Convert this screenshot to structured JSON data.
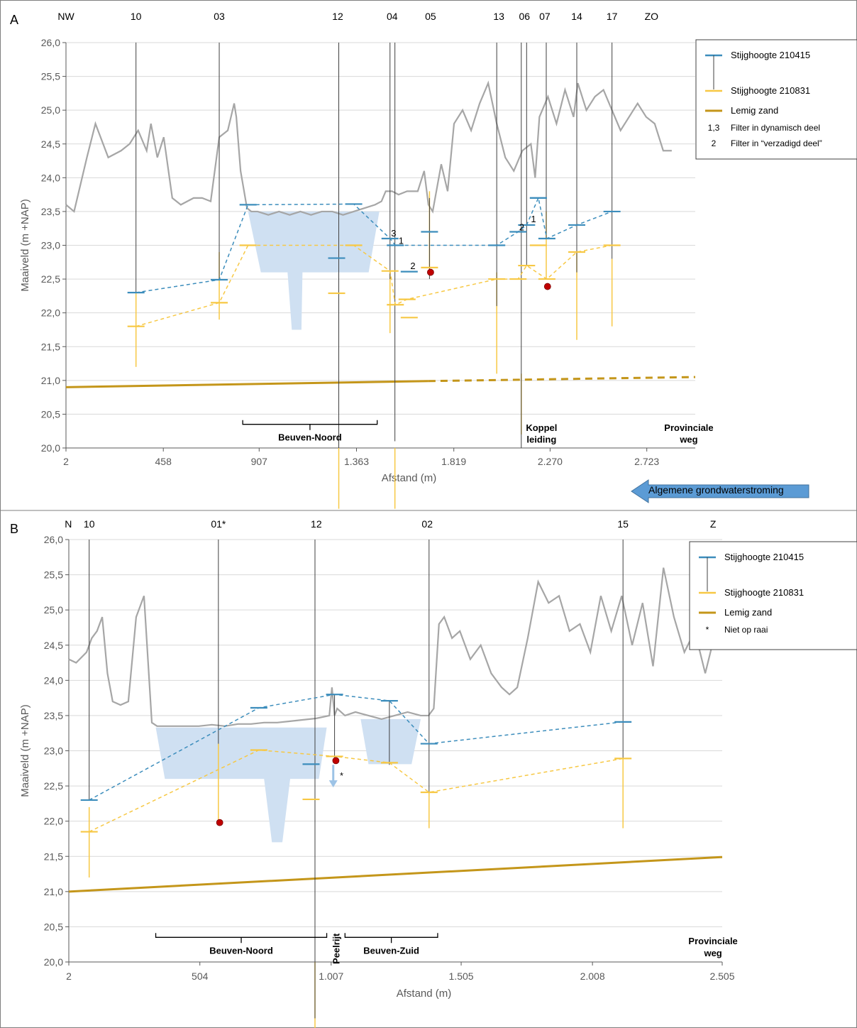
{
  "colors": {
    "blue": "#3C8DBC",
    "yellow": "#F7C844",
    "sand": "#C4961A",
    "terrain": "#A6A6A6",
    "basin": "#CFE0F2",
    "red": "#C00000",
    "arrow": "#5B9BD5",
    "grid": "#D9D9D9"
  },
  "flow_label": "Algemene grondwaterstroming",
  "chart_data": [
    {
      "type": "line",
      "panel_label": "A",
      "ylabel": "Maaiveld (m +NAP)",
      "xlabel": "Afstand (m)",
      "ylim": [
        20.0,
        26.0
      ],
      "xlim": [
        2,
        2950
      ],
      "y_ticks": [
        "26,0",
        "25,5",
        "25,0",
        "24,5",
        "24,0",
        "23,5",
        "23,0",
        "22,5",
        "22,0",
        "21,5",
        "21,0",
        "20,5",
        "20,0"
      ],
      "x_ticks": [
        {
          "value": 2,
          "label": "2"
        },
        {
          "value": 458,
          "label": "458"
        },
        {
          "value": 907,
          "label": "907"
        },
        {
          "value": 1363,
          "label": "1.363"
        },
        {
          "value": 1819,
          "label": "1.819"
        },
        {
          "value": 2270,
          "label": "2.270"
        },
        {
          "value": 2723,
          "label": "2.723"
        }
      ],
      "top_labels": [
        {
          "text": "NW",
          "x": 2
        },
        {
          "text": "10",
          "x": 330
        },
        {
          "text": "03",
          "x": 720
        },
        {
          "text": "12",
          "x": 1275
        },
        {
          "text": "04",
          "x": 1530
        },
        {
          "text": "05",
          "x": 1710
        },
        {
          "text": "13",
          "x": 2030
        },
        {
          "text": "06",
          "x": 2150
        },
        {
          "text": "07",
          "x": 2245
        },
        {
          "text": "14",
          "x": 2395
        },
        {
          "text": "17",
          "x": 2560
        },
        {
          "text": "ZO",
          "x": 2745
        }
      ],
      "wells": [
        {
          "name": "10",
          "x": 330,
          "top": 26.0,
          "bottom": 22.3
        },
        {
          "name": "03",
          "x": 720,
          "top": 26.0,
          "bottom": 22.5
        },
        {
          "name": "12",
          "x": 1280,
          "top": 26.0,
          "bottom": 20.0
        },
        {
          "name": "04a",
          "x": 1520,
          "top": 26.0,
          "bottom": 22.5
        },
        {
          "name": "04b",
          "x": 1543,
          "top": 26.0,
          "bottom": 20.1
        },
        {
          "name": "05",
          "x": 1705,
          "top": 23.7,
          "bottom": 22.5
        },
        {
          "name": "13",
          "x": 2020,
          "top": 26.0,
          "bottom": 22.1
        },
        {
          "name": "06a",
          "x": 2135,
          "top": 26.0,
          "bottom": 20.0
        },
        {
          "name": "06b",
          "x": 2160,
          "top": 26.0,
          "bottom": 22.7
        },
        {
          "name": "07",
          "x": 2252,
          "top": 26.0,
          "bottom": 23.1
        },
        {
          "name": "14",
          "x": 2395,
          "top": 26.0,
          "bottom": 22.6
        },
        {
          "name": "17",
          "x": 2560,
          "top": 26.0,
          "bottom": 22.8
        }
      ],
      "yellow_screens": [
        {
          "x": 330,
          "top": 22.3,
          "bottom": 21.2
        },
        {
          "x": 720,
          "top": 22.9,
          "bottom": 21.9
        },
        {
          "x": 1280,
          "top": 20.0,
          "bottom": 19.1
        },
        {
          "x": 1520,
          "top": 22.6,
          "bottom": 21.7
        },
        {
          "x": 1543,
          "top": 20.0,
          "bottom": 19.1
        },
        {
          "x": 1705,
          "top": 23.8,
          "bottom": 22.6
        },
        {
          "x": 2020,
          "top": 22.6,
          "bottom": 21.1
        },
        {
          "x": 2135,
          "top": 21.1,
          "bottom": 20.2
        },
        {
          "x": 2252,
          "top": 23.5,
          "bottom": 22.5
        },
        {
          "x": 2395,
          "top": 22.9,
          "bottom": 21.6
        },
        {
          "x": 2560,
          "top": 22.8,
          "bottom": 21.8
        }
      ],
      "series": [
        {
          "name": "Stijghoogte 210415",
          "color": "#3C8DBC",
          "x": [
            330,
            720,
            855,
            1350,
            1520,
            1545,
            2020,
            2120,
            2160,
            2215,
            2255,
            2395,
            2560
          ],
          "y": [
            22.3,
            22.49,
            23.6,
            23.61,
            23.1,
            23.0,
            23.0,
            23.2,
            23.3,
            23.7,
            23.1,
            23.3,
            23.5
          ]
        },
        {
          "name": "Stijghoogte 210831",
          "color": "#F7C844",
          "x": [
            330,
            720,
            855,
            1350,
            1520,
            1545,
            1600,
            2020,
            2120,
            2160,
            2255,
            2395,
            2560
          ],
          "y": [
            21.8,
            22.15,
            23.0,
            23.0,
            22.62,
            22.12,
            22.2,
            22.5,
            22.5,
            22.7,
            22.5,
            22.9,
            23.0
          ]
        }
      ],
      "extra_blue_markers": [
        {
          "x": 1270,
          "y": 22.81
        },
        {
          "x": 1610,
          "y": 22.61
        },
        {
          "x": 1705,
          "y": 23.2
        },
        {
          "x": 2215,
          "y": 23.7
        }
      ],
      "extra_yellow_markers": [
        {
          "x": 1270,
          "y": 22.29
        },
        {
          "x": 1610,
          "y": 21.93
        },
        {
          "x": 1705,
          "y": 22.67
        },
        {
          "x": 2215,
          "y": 23.0
        }
      ],
      "red_points": [
        {
          "x": 1710,
          "y": 22.6
        },
        {
          "x": 2258,
          "y": 22.39
        }
      ],
      "filter_labels": [
        {
          "text": "3",
          "x": 1525,
          "y": 23.13
        },
        {
          "text": "1",
          "x": 1560,
          "y": 23.02
        },
        {
          "text": "2",
          "x": 1615,
          "y": 22.65
        },
        {
          "text": "2",
          "x": 2125,
          "y": 23.22
        },
        {
          "text": "1",
          "x": 2180,
          "y": 23.34
        }
      ],
      "lemig_zand": {
        "x": [
          2,
          1700,
          2950
        ],
        "y": [
          20.9,
          20.99,
          21.05
        ],
        "solid_until": 1700
      },
      "basin": [
        {
          "x": 855,
          "y": 23.5
        },
        {
          "x": 1470,
          "y": 23.5
        },
        {
          "x": 1420,
          "y": 22.6
        },
        {
          "x": 1110,
          "y": 22.6
        },
        {
          "x": 1105,
          "y": 21.75
        },
        {
          "x": 1060,
          "y": 21.75
        },
        {
          "x": 1040,
          "y": 22.6
        },
        {
          "x": 915,
          "y": 22.6
        }
      ],
      "terrain": {
        "x": [
          2,
          40,
          100,
          140,
          200,
          260,
          300,
          340,
          380,
          400,
          430,
          460,
          500,
          540,
          600,
          640,
          680,
          720,
          760,
          790,
          800,
          820,
          850,
          870,
          900,
          950,
          1000,
          1050,
          1100,
          1150,
          1200,
          1250,
          1300,
          1350,
          1400,
          1450,
          1480,
          1500,
          1530,
          1560,
          1600,
          1650,
          1680,
          1700,
          1720,
          1760,
          1790,
          1820,
          1860,
          1900,
          1940,
          1980,
          2020,
          2060,
          2100,
          2140,
          2180,
          2200,
          2220,
          2260,
          2300,
          2340,
          2380,
          2400,
          2440,
          2480,
          2520,
          2560,
          2600,
          2640,
          2680,
          2720,
          2760,
          2800,
          2840
        ],
        "y": [
          23.6,
          23.5,
          24.3,
          24.8,
          24.3,
          24.4,
          24.5,
          24.7,
          24.4,
          24.8,
          24.3,
          24.6,
          23.7,
          23.6,
          23.7,
          23.7,
          23.65,
          24.6,
          24.7,
          25.1,
          24.9,
          24.1,
          23.55,
          23.5,
          23.5,
          23.45,
          23.5,
          23.45,
          23.5,
          23.45,
          23.5,
          23.5,
          23.45,
          23.5,
          23.55,
          23.6,
          23.65,
          23.8,
          23.8,
          23.75,
          23.8,
          23.8,
          24.1,
          23.6,
          23.5,
          24.2,
          23.8,
          24.8,
          25.0,
          24.7,
          25.1,
          25.4,
          24.8,
          24.3,
          24.1,
          24.4,
          24.5,
          24.0,
          24.9,
          25.2,
          24.8,
          25.3,
          24.9,
          25.4,
          25.0,
          25.2,
          25.3,
          25.0,
          24.7,
          24.9,
          25.1,
          24.9,
          24.8,
          24.4,
          24.4
        ]
      },
      "brackets": [
        {
          "text": "Beuven-Noord",
          "x1": 830,
          "x2": 1460,
          "y": 20.35
        }
      ],
      "place_labels": [
        {
          "text": "Koppel",
          "x": 2230,
          "y": 20.25
        },
        {
          "text": "leiding",
          "x": 2230,
          "y": 20.08
        },
        {
          "text": "Provinciale",
          "x": 2920,
          "y": 20.25
        },
        {
          "text": "weg",
          "x": 2920,
          "y": 20.08
        }
      ],
      "legend": {
        "items": [
          {
            "kind": "blue",
            "label": "Stijghoogte 210415"
          },
          {
            "kind": "yellow",
            "label": "Stijghoogte 210831"
          },
          {
            "kind": "sand",
            "label": "Lemig zand"
          },
          {
            "kind": "text",
            "key": "1,3",
            "label": "Filter in dynamisch deel"
          },
          {
            "kind": "text",
            "key": "2",
            "label": "Filter in “verzadigd deel”"
          }
        ]
      }
    },
    {
      "type": "line",
      "panel_label": "B",
      "ylabel": "Maaiveld (m +NAP)",
      "xlabel": "Afstand (m)",
      "ylim": [
        20.0,
        26.0
      ],
      "xlim": [
        2,
        2505
      ],
      "y_ticks": [
        "26,0",
        "25,5",
        "25,0",
        "24,5",
        "24,0",
        "23,5",
        "23,0",
        "22,5",
        "22,0",
        "21,5",
        "21,0",
        "20,5",
        "20,0"
      ],
      "x_ticks": [
        {
          "value": 2,
          "label": "2"
        },
        {
          "value": 504,
          "label": "504"
        },
        {
          "value": 1007,
          "label": "1.007"
        },
        {
          "value": 1505,
          "label": "1.505"
        },
        {
          "value": 2008,
          "label": "2.008"
        },
        {
          "value": 2505,
          "label": "2.505"
        }
      ],
      "top_labels": [
        {
          "text": "N",
          "x": 0
        },
        {
          "text": "10",
          "x": 80
        },
        {
          "text": "01*",
          "x": 575
        },
        {
          "text": "12",
          "x": 950
        },
        {
          "text": "02",
          "x": 1375
        },
        {
          "text": "15",
          "x": 2125
        },
        {
          "text": "Z",
          "x": 2470
        }
      ],
      "wells": [
        {
          "name": "10",
          "x": 80,
          "top": 26.0,
          "bottom": 22.3
        },
        {
          "name": "01",
          "x": 575,
          "top": 26.0,
          "bottom": 23.1
        },
        {
          "name": "12",
          "x": 945,
          "top": 26.0,
          "bottom": 19.2
        },
        {
          "name": "peel",
          "x": 1020,
          "top": 23.8,
          "bottom": 22.9
        },
        {
          "name": "bz",
          "x": 1230,
          "top": 23.7,
          "bottom": 22.8
        },
        {
          "name": "02",
          "x": 1382,
          "top": 26.0,
          "bottom": 22.4
        },
        {
          "name": "15",
          "x": 2125,
          "top": 26.0,
          "bottom": 22.9
        }
      ],
      "yellow_screens": [
        {
          "x": 80,
          "top": 22.2,
          "bottom": 21.2
        },
        {
          "x": 575,
          "top": 23.1,
          "bottom": 22.0
        },
        {
          "x": 945,
          "top": 20.0,
          "bottom": 18.6
        },
        {
          "x": 1382,
          "top": 22.4,
          "bottom": 21.9
        },
        {
          "x": 2125,
          "top": 22.9,
          "bottom": 21.9
        }
      ],
      "series": [
        {
          "name": "Stijghoogte 210415",
          "color": "#3C8DBC",
          "x": [
            80,
            730,
            1020,
            1230,
            1382,
            2125
          ],
          "y": [
            22.3,
            23.61,
            23.8,
            23.71,
            23.1,
            23.41
          ]
        },
        {
          "name": "Stijghoogte 210831",
          "color": "#F7C844",
          "x": [
            80,
            730,
            1020,
            1230,
            1382,
            2125
          ],
          "y": [
            21.85,
            23.01,
            22.92,
            22.83,
            22.41,
            22.89
          ]
        }
      ],
      "extra_blue_markers": [
        {
          "x": 930,
          "y": 22.81
        }
      ],
      "extra_yellow_markers": [
        {
          "x": 930,
          "y": 22.31
        }
      ],
      "red_points": [
        {
          "x": 580,
          "y": 21.98
        },
        {
          "x": 1025,
          "y": 22.86
        }
      ],
      "filter_labels": [
        {
          "text": "*",
          "x": 1040,
          "y": 22.6
        }
      ],
      "lemig_zand": {
        "x": [
          2,
          2505
        ],
        "y": [
          21.0,
          21.49
        ],
        "solid_until": 2505
      },
      "basin": [
        {
          "x": 335,
          "y": 23.33
        },
        {
          "x": 990,
          "y": 23.33
        },
        {
          "x": 960,
          "y": 22.6
        },
        {
          "x": 850,
          "y": 22.6
        },
        {
          "x": 820,
          "y": 21.7
        },
        {
          "x": 780,
          "y": 21.7
        },
        {
          "x": 750,
          "y": 22.6
        },
        {
          "x": 370,
          "y": 22.6
        }
      ],
      "basin2": [
        {
          "x": 1120,
          "y": 23.45
        },
        {
          "x": 1350,
          "y": 23.45
        },
        {
          "x": 1315,
          "y": 22.81
        },
        {
          "x": 1150,
          "y": 22.81
        }
      ],
      "terrain": {
        "x": [
          2,
          30,
          70,
          90,
          110,
          130,
          150,
          170,
          200,
          230,
          260,
          290,
          320,
          340,
          360,
          400,
          450,
          500,
          550,
          600,
          650,
          700,
          750,
          800,
          850,
          900,
          950,
          1000,
          1010,
          1020,
          1030,
          1060,
          1100,
          1150,
          1200,
          1250,
          1300,
          1350,
          1380,
          1400,
          1420,
          1440,
          1470,
          1500,
          1540,
          1580,
          1620,
          1660,
          1690,
          1720,
          1760,
          1800,
          1840,
          1880,
          1920,
          1960,
          2000,
          2040,
          2080,
          2120,
          2160,
          2200,
          2240,
          2280,
          2320,
          2360,
          2400,
          2440,
          2480,
          2505
        ],
        "y": [
          24.3,
          24.25,
          24.4,
          24.6,
          24.7,
          24.9,
          24.1,
          23.7,
          23.65,
          23.7,
          24.9,
          25.2,
          23.4,
          23.35,
          23.35,
          23.35,
          23.35,
          23.35,
          23.37,
          23.35,
          23.38,
          23.38,
          23.4,
          23.4,
          23.42,
          23.44,
          23.46,
          23.5,
          23.9,
          23.5,
          23.6,
          23.5,
          23.55,
          23.5,
          23.45,
          23.5,
          23.55,
          23.5,
          23.5,
          23.6,
          24.8,
          24.9,
          24.6,
          24.7,
          24.3,
          24.5,
          24.1,
          23.9,
          23.8,
          23.9,
          24.6,
          25.4,
          25.1,
          25.2,
          24.7,
          24.8,
          24.4,
          25.2,
          24.7,
          25.2,
          24.5,
          25.1,
          24.2,
          25.6,
          24.9,
          24.4,
          24.7,
          24.1,
          24.7,
          24.7
        ]
      },
      "brackets": [
        {
          "text": "Beuven-Noord",
          "x1": 335,
          "x2": 990,
          "y": 20.35
        },
        {
          "text": "Beuven-Zuid",
          "x1": 1060,
          "x2": 1415,
          "y": 20.35
        }
      ],
      "peelrijt": {
        "text": "Peelrijt",
        "x": 1025
      },
      "place_labels": [
        {
          "text": "Provinciale",
          "x": 2470,
          "y": 20.25
        },
        {
          "text": "weg",
          "x": 2470,
          "y": 20.08
        }
      ],
      "legend": {
        "items": [
          {
            "kind": "blue",
            "label": "Stijghoogte 210415"
          },
          {
            "kind": "yellow",
            "label": "Stijghoogte 210831"
          },
          {
            "kind": "sand",
            "label": "Lemig zand"
          },
          {
            "kind": "text",
            "key": "*",
            "label": "Niet op raai"
          }
        ]
      }
    }
  ]
}
